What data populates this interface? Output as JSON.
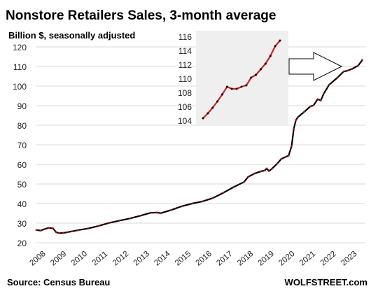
{
  "chart_data": [
    {
      "type": "line",
      "title": "Nonstore Retailers Sales, 3-month average",
      "ylabel": "Billion $, seasonally adjusted",
      "source": "Source: Census Bureau",
      "credit": "WOLFSTREET.com",
      "ylim": [
        20,
        120
      ],
      "yticks": [
        20,
        30,
        40,
        50,
        60,
        70,
        80,
        90,
        100,
        110,
        120
      ],
      "xlim": [
        2008,
        2023.85
      ],
      "xticks": [
        "2008",
        "2009",
        "2010",
        "2011",
        "2012",
        "2013",
        "2014",
        "2015",
        "2016",
        "2017",
        "2018",
        "2019",
        "2020",
        "2021",
        "2022",
        "2023"
      ],
      "grid": "horizontal",
      "series": [
        {
          "color": "#000000",
          "marker_color": "#9b1b1b",
          "points": [
            [
              2008.0,
              26.5
            ],
            [
              2008.2,
              26.2
            ],
            [
              2008.4,
              27.0
            ],
            [
              2008.6,
              27.6
            ],
            [
              2008.8,
              27.3
            ],
            [
              2008.95,
              25.4
            ],
            [
              2009.1,
              24.9
            ],
            [
              2009.3,
              25.0
            ],
            [
              2009.5,
              25.4
            ],
            [
              2009.7,
              25.8
            ],
            [
              2010.0,
              26.4
            ],
            [
              2010.5,
              27.3
            ],
            [
              2011.0,
              28.6
            ],
            [
              2011.5,
              30.1
            ],
            [
              2012.0,
              31.3
            ],
            [
              2012.5,
              32.4
            ],
            [
              2013.0,
              33.8
            ],
            [
              2013.5,
              35.3
            ],
            [
              2013.8,
              35.4
            ],
            [
              2014.0,
              35.1
            ],
            [
              2014.5,
              36.7
            ],
            [
              2015.0,
              38.6
            ],
            [
              2015.5,
              40.0
            ],
            [
              2016.0,
              41.1
            ],
            [
              2016.5,
              42.8
            ],
            [
              2017.0,
              45.5
            ],
            [
              2017.5,
              48.4
            ],
            [
              2018.0,
              51.0
            ],
            [
              2018.2,
              53.6
            ],
            [
              2018.5,
              55.3
            ],
            [
              2018.8,
              56.4
            ],
            [
              2019.0,
              56.9
            ],
            [
              2019.1,
              57.9
            ],
            [
              2019.2,
              56.6
            ],
            [
              2019.35,
              57.8
            ],
            [
              2019.6,
              60.4
            ],
            [
              2019.8,
              62.8
            ],
            [
              2020.0,
              63.8
            ],
            [
              2020.15,
              64.5
            ],
            [
              2020.3,
              69.5
            ],
            [
              2020.4,
              78.2
            ],
            [
              2020.5,
              82.6
            ],
            [
              2020.6,
              84.1
            ],
            [
              2020.9,
              86.8
            ],
            [
              2021.2,
              89.6
            ],
            [
              2021.35,
              90.1
            ],
            [
              2021.55,
              93.3
            ],
            [
              2021.7,
              92.6
            ],
            [
              2021.85,
              96.2
            ],
            [
              2022.1,
              100.6
            ],
            [
              2022.5,
              104.3
            ],
            [
              2022.8,
              107.4
            ],
            [
              2023.0,
              107.9
            ],
            [
              2023.2,
              108.7
            ],
            [
              2023.5,
              110.4
            ],
            [
              2023.7,
              113.3
            ]
          ]
        }
      ]
    },
    {
      "type": "line",
      "title": "",
      "ylim": [
        103.3,
        116.9
      ],
      "yticks": [
        104,
        106,
        108,
        110,
        112,
        114,
        116
      ],
      "xticks": [],
      "series": [
        {
          "color": "#d42020",
          "marker_color": "#000000",
          "points": [
            [
              2022.0,
              104.4
            ],
            [
              2022.1,
              105.1
            ],
            [
              2022.2,
              105.9
            ],
            [
              2022.3,
              106.8
            ],
            [
              2022.4,
              107.8
            ],
            [
              2022.5,
              108.9
            ],
            [
              2022.6,
              108.6
            ],
            [
              2022.7,
              108.6
            ],
            [
              2022.8,
              108.9
            ],
            [
              2022.9,
              109.1
            ],
            [
              2023.0,
              110.2
            ],
            [
              2023.1,
              110.6
            ],
            [
              2023.2,
              111.4
            ],
            [
              2023.3,
              112.2
            ],
            [
              2023.4,
              113.3
            ],
            [
              2023.5,
              114.7
            ],
            [
              2023.6,
              115.5
            ]
          ]
        }
      ]
    }
  ]
}
